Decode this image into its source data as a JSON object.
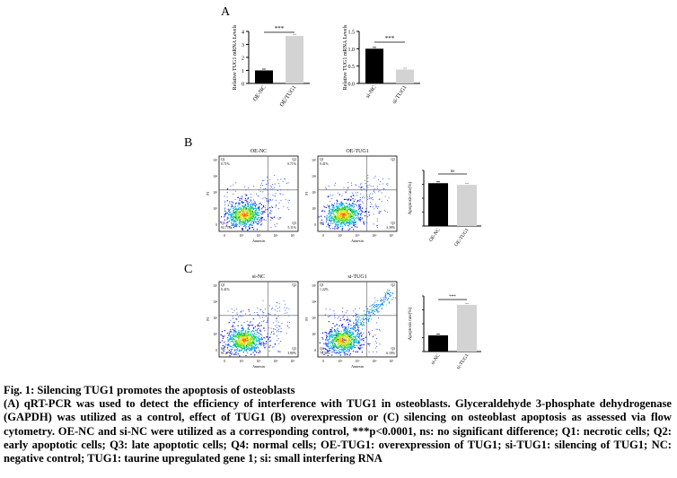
{
  "panel_letters": {
    "a": "A",
    "b": "B",
    "c": "C"
  },
  "chart_data": [
    {
      "id": "A-left",
      "type": "bar",
      "categories": [
        "OE-NC",
        "OE/TUG1"
      ],
      "values": [
        1.0,
        3.65
      ],
      "ylabel": "Relative TUG1 mRNA Levels",
      "ylim": [
        0,
        4
      ],
      "yticks": [
        "0",
        "1",
        "2",
        "3",
        "4"
      ],
      "significance": "***",
      "colors": [
        "#000000",
        "#d3d3d3"
      ]
    },
    {
      "id": "A-right",
      "type": "bar",
      "categories": [
        "si-NC",
        "si-TUG1"
      ],
      "values": [
        1.0,
        0.4
      ],
      "ylabel": "Relative TUG1 mRNA Levels",
      "ylim": [
        0,
        1.5
      ],
      "yticks": [
        "0.0",
        "0.5",
        "1.0",
        "1.5"
      ],
      "significance": "***",
      "colors": [
        "#000000",
        "#d3d3d3"
      ]
    },
    {
      "id": "B-right",
      "type": "bar",
      "categories": [
        "OE-NC",
        "OE-TUG1"
      ],
      "values": [
        7.7,
        7.4
      ],
      "ylabel": "Apoptosis rate(%)",
      "ylim": [
        0,
        10
      ],
      "significance": "ns",
      "colors": [
        "#000000",
        "#d3d3d3"
      ]
    },
    {
      "id": "C-right",
      "type": "bar",
      "categories": [
        "si-NC",
        "si-TUG1"
      ],
      "values": [
        7.3,
        21.0
      ],
      "ylabel": "Apoptosis rate(%)",
      "ylim": [
        0,
        25
      ],
      "significance": "***",
      "colors": [
        "#000000",
        "#d3d3d3"
      ]
    }
  ],
  "flow_plots": [
    {
      "id": "B1",
      "title": "OE-NC",
      "q1": "0.71%",
      "q2": "0.71%",
      "q3": "5.11%",
      "q4": "92.77%",
      "xlabel": "Annexin",
      "ylabel": "PI",
      "pattern": "normal"
    },
    {
      "id": "B2",
      "title": "OE-TUG1",
      "q1": "0.41%",
      "q2": "",
      "q3": "3.38%",
      "q4": "",
      "xlabel": "Annexin",
      "ylabel": "PI",
      "pattern": "normal"
    },
    {
      "id": "C1",
      "title": "si-NC",
      "q1": "0.41%",
      "q2": "",
      "q3": "3.80%",
      "q4": "91.27%",
      "xlabel": "Annexin",
      "ylabel": "PI",
      "pattern": "normal"
    },
    {
      "id": "C2",
      "title": "si-TUG1",
      "q1": "1.22%",
      "q2": "",
      "q3": "6.18%",
      "q4": "76.38%",
      "xlabel": "Annexin",
      "ylabel": "PI",
      "pattern": "apoptotic"
    }
  ],
  "caption": {
    "title": "Fig. 1: Silencing TUG1 promotes the apoptosis of osteoblasts",
    "body": "(A) qRT-PCR was used to detect the efficiency of interference with TUG1 in osteoblasts. Glyceraldehyde 3-phosphate dehydrogenase (GAPDH) was utilized as a control, effect of TUG1 (B) overexpression or (C) silencing on osteoblast apoptosis as assessed via flow cytometry. OE-NC and si-NC were utilized as a corresponding control, ***p<0.0001, ns: no significant difference; Q1: necrotic cells; Q2: early apoptotic cells; Q3: late apoptotic cells; Q4: normal cells; OE-TUG1: overexpression of TUG1; si-TUG1: silencing of TUG1; NC: negative control; TUG1: taurine upregulated gene 1; si: small interfering RNA"
  }
}
